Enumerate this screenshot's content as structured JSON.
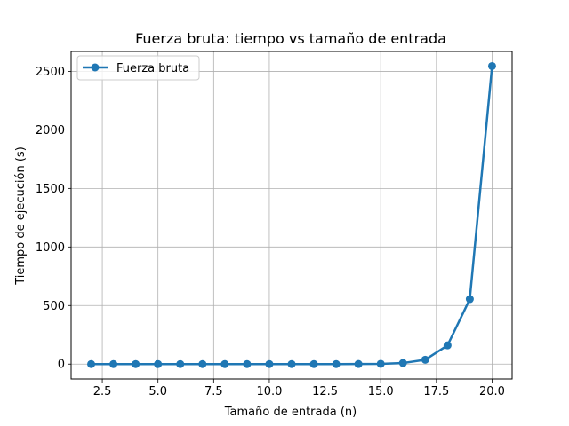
{
  "chart_data": {
    "type": "line",
    "title": "Fuerza bruta: tiempo vs tamaño de entrada",
    "xlabel": "Tamaño de entrada (n)",
    "ylabel": "Tiempo de ejecución (s)",
    "xlim": [
      1.1,
      20.9
    ],
    "ylim": [
      -127,
      2670
    ],
    "xticks": [
      2.5,
      5.0,
      7.5,
      10.0,
      12.5,
      15.0,
      17.5,
      20.0
    ],
    "xtick_labels": [
      "2.5",
      "5.0",
      "7.5",
      "10.0",
      "12.5",
      "15.0",
      "17.5",
      "20.0"
    ],
    "yticks": [
      0,
      500,
      1000,
      1500,
      2000,
      2500
    ],
    "ytick_labels": [
      "0",
      "500",
      "1000",
      "1500",
      "2000",
      "2500"
    ],
    "grid": true,
    "legend_position": "upper-left",
    "series": [
      {
        "name": "Fuerza bruta",
        "color": "#1f77b4",
        "marker": "circle",
        "x": [
          2,
          3,
          4,
          5,
          6,
          7,
          8,
          9,
          10,
          11,
          12,
          13,
          14,
          15,
          16,
          17,
          18,
          19,
          20
        ],
        "y": [
          0,
          0,
          0,
          0,
          0,
          0,
          0,
          0,
          0,
          0,
          0,
          0,
          0.5,
          2,
          9,
          37,
          160,
          555,
          2545
        ]
      }
    ]
  }
}
